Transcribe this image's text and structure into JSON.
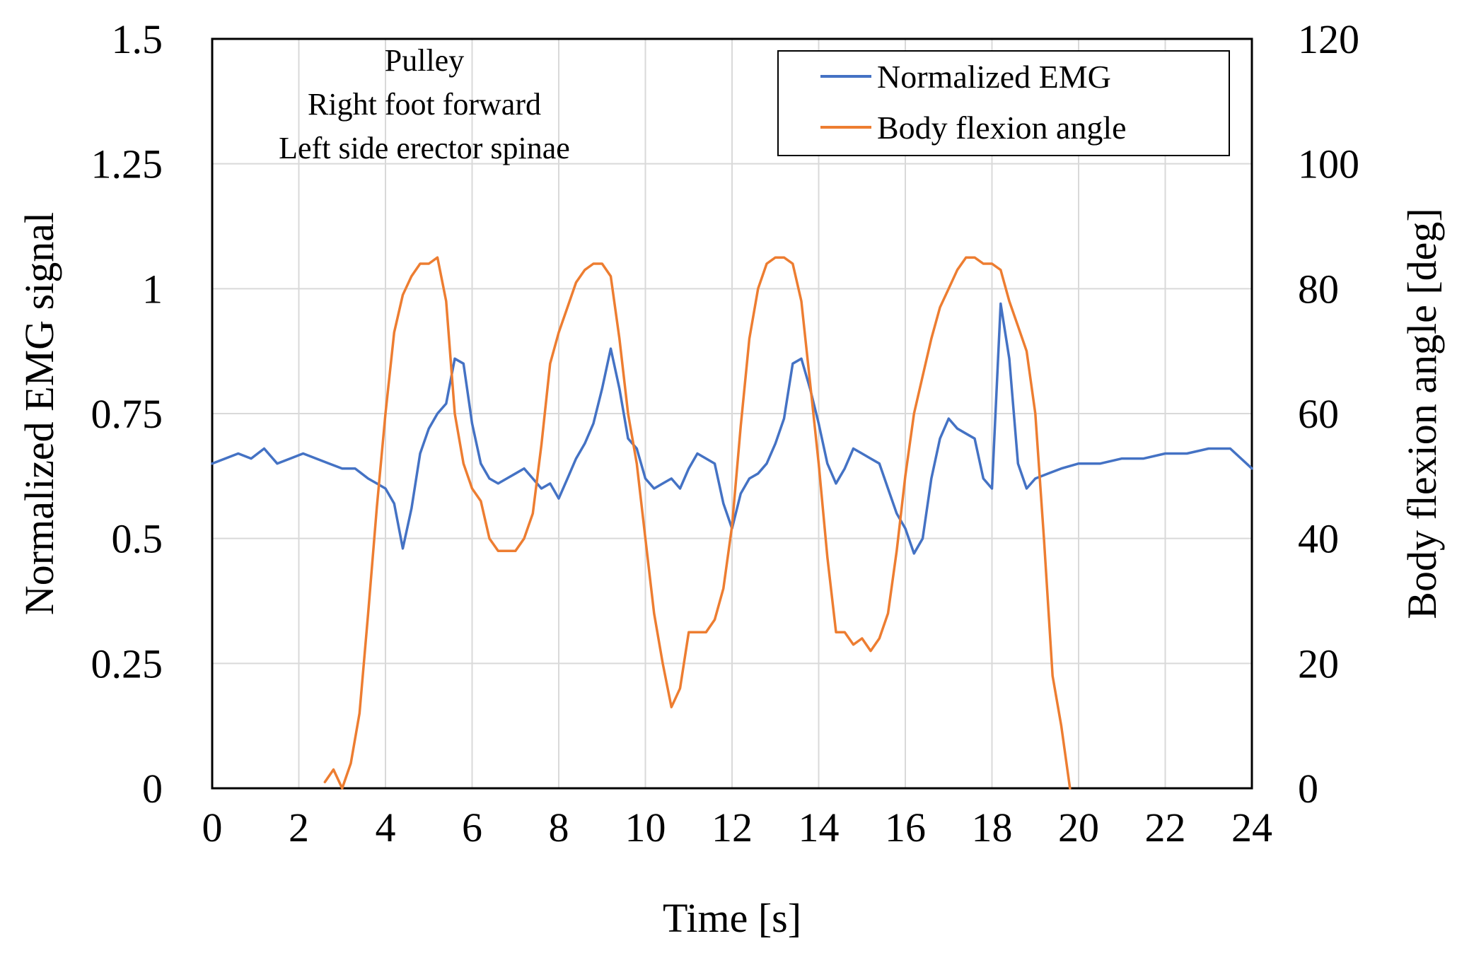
{
  "chart_data": {
    "type": "line",
    "title": "",
    "annotation": [
      "Pulley",
      "Right foot forward",
      "Left side erector spinae"
    ],
    "xlabel": "Time [s]",
    "ylabel": "Normalized EMG signal",
    "y2label": "Body flexion angle [deg]",
    "xlim": [
      0,
      24
    ],
    "ylim": [
      0,
      1.5
    ],
    "y2lim": [
      0,
      120
    ],
    "x_ticks": [
      "0",
      "2",
      "4",
      "6",
      "8",
      "10",
      "12",
      "14",
      "16",
      "18",
      "20",
      "22",
      "24"
    ],
    "y_ticks": [
      "0",
      "0.25",
      "0.5",
      "0.75",
      "1",
      "1.25",
      "1.5"
    ],
    "y2_ticks": [
      "0",
      "20",
      "40",
      "60",
      "80",
      "100",
      "120"
    ],
    "grid": true,
    "legend_position": "top-right",
    "series": [
      {
        "name": "Normalized EMG",
        "axis": "left",
        "color": "#4472C4",
        "x": [
          0,
          0.3,
          0.6,
          0.9,
          1.2,
          1.5,
          1.8,
          2.1,
          2.4,
          2.7,
          3.0,
          3.3,
          3.6,
          3.8,
          4.0,
          4.2,
          4.4,
          4.6,
          4.8,
          5.0,
          5.2,
          5.4,
          5.6,
          5.8,
          6.0,
          6.2,
          6.4,
          6.6,
          6.8,
          7.0,
          7.2,
          7.4,
          7.6,
          7.8,
          8.0,
          8.2,
          8.4,
          8.6,
          8.8,
          9.0,
          9.2,
          9.4,
          9.6,
          9.8,
          10.0,
          10.2,
          10.4,
          10.6,
          10.8,
          11.0,
          11.2,
          11.4,
          11.6,
          11.8,
          12.0,
          12.2,
          12.4,
          12.6,
          12.8,
          13.0,
          13.2,
          13.4,
          13.6,
          13.8,
          14.0,
          14.2,
          14.4,
          14.6,
          14.8,
          15.0,
          15.2,
          15.4,
          15.6,
          15.8,
          16.0,
          16.2,
          16.4,
          16.6,
          16.8,
          17.0,
          17.2,
          17.4,
          17.6,
          17.8,
          18.0,
          18.2,
          18.4,
          18.6,
          18.8,
          19.0,
          19.3,
          19.6,
          20.0,
          20.5,
          21.0,
          21.5,
          22.0,
          22.5,
          23.0,
          23.5,
          24.0
        ],
        "values": [
          0.65,
          0.66,
          0.67,
          0.66,
          0.68,
          0.65,
          0.66,
          0.67,
          0.66,
          0.65,
          0.64,
          0.64,
          0.62,
          0.61,
          0.6,
          0.57,
          0.48,
          0.56,
          0.67,
          0.72,
          0.75,
          0.77,
          0.86,
          0.85,
          0.73,
          0.65,
          0.62,
          0.61,
          0.62,
          0.63,
          0.64,
          0.62,
          0.6,
          0.61,
          0.58,
          0.62,
          0.66,
          0.69,
          0.73,
          0.8,
          0.88,
          0.8,
          0.7,
          0.68,
          0.62,
          0.6,
          0.61,
          0.62,
          0.6,
          0.64,
          0.67,
          0.66,
          0.65,
          0.57,
          0.52,
          0.59,
          0.62,
          0.63,
          0.65,
          0.69,
          0.74,
          0.85,
          0.86,
          0.8,
          0.73,
          0.65,
          0.61,
          0.64,
          0.68,
          0.67,
          0.66,
          0.65,
          0.6,
          0.55,
          0.52,
          0.47,
          0.5,
          0.62,
          0.7,
          0.74,
          0.72,
          0.71,
          0.7,
          0.62,
          0.6,
          0.97,
          0.86,
          0.65,
          0.6,
          0.62,
          0.63,
          0.64,
          0.65,
          0.65,
          0.66,
          0.66,
          0.67,
          0.67,
          0.68,
          0.68,
          0.64
        ]
      },
      {
        "name": "Body flexion angle",
        "axis": "right",
        "color": "#ED7D31",
        "x": [
          2.6,
          2.8,
          3.0,
          3.2,
          3.4,
          3.6,
          3.8,
          4.0,
          4.2,
          4.4,
          4.6,
          4.8,
          5.0,
          5.2,
          5.4,
          5.6,
          5.8,
          6.0,
          6.2,
          6.4,
          6.6,
          6.8,
          7.0,
          7.2,
          7.4,
          7.6,
          7.8,
          8.0,
          8.2,
          8.4,
          8.6,
          8.8,
          9.0,
          9.2,
          9.4,
          9.6,
          9.8,
          10.0,
          10.2,
          10.4,
          10.6,
          10.8,
          11.0,
          11.2,
          11.4,
          11.6,
          11.8,
          12.0,
          12.2,
          12.4,
          12.6,
          12.8,
          13.0,
          13.2,
          13.4,
          13.6,
          13.8,
          14.0,
          14.2,
          14.4,
          14.6,
          14.8,
          15.0,
          15.2,
          15.4,
          15.6,
          15.8,
          16.0,
          16.2,
          16.4,
          16.6,
          16.8,
          17.0,
          17.2,
          17.4,
          17.6,
          17.8,
          18.0,
          18.2,
          18.4,
          18.6,
          18.8,
          19.0,
          19.2,
          19.4,
          19.6,
          19.8
        ],
        "values": [
          1,
          3,
          0,
          4,
          12,
          28,
          45,
          60,
          73,
          79,
          82,
          84,
          84,
          85,
          78,
          60,
          52,
          48,
          46,
          40,
          38,
          38,
          38,
          40,
          44,
          55,
          68,
          73,
          77,
          81,
          83,
          84,
          84,
          82,
          72,
          60,
          52,
          40,
          28,
          20,
          13,
          16,
          25,
          25,
          25,
          27,
          32,
          42,
          58,
          72,
          80,
          84,
          85,
          85,
          84,
          78,
          65,
          52,
          37,
          25,
          25,
          23,
          24,
          22,
          24,
          28,
          38,
          50,
          60,
          66,
          72,
          77,
          80,
          83,
          85,
          85,
          84,
          84,
          83,
          78,
          74,
          70,
          60,
          40,
          18,
          10,
          0
        ]
      }
    ]
  }
}
